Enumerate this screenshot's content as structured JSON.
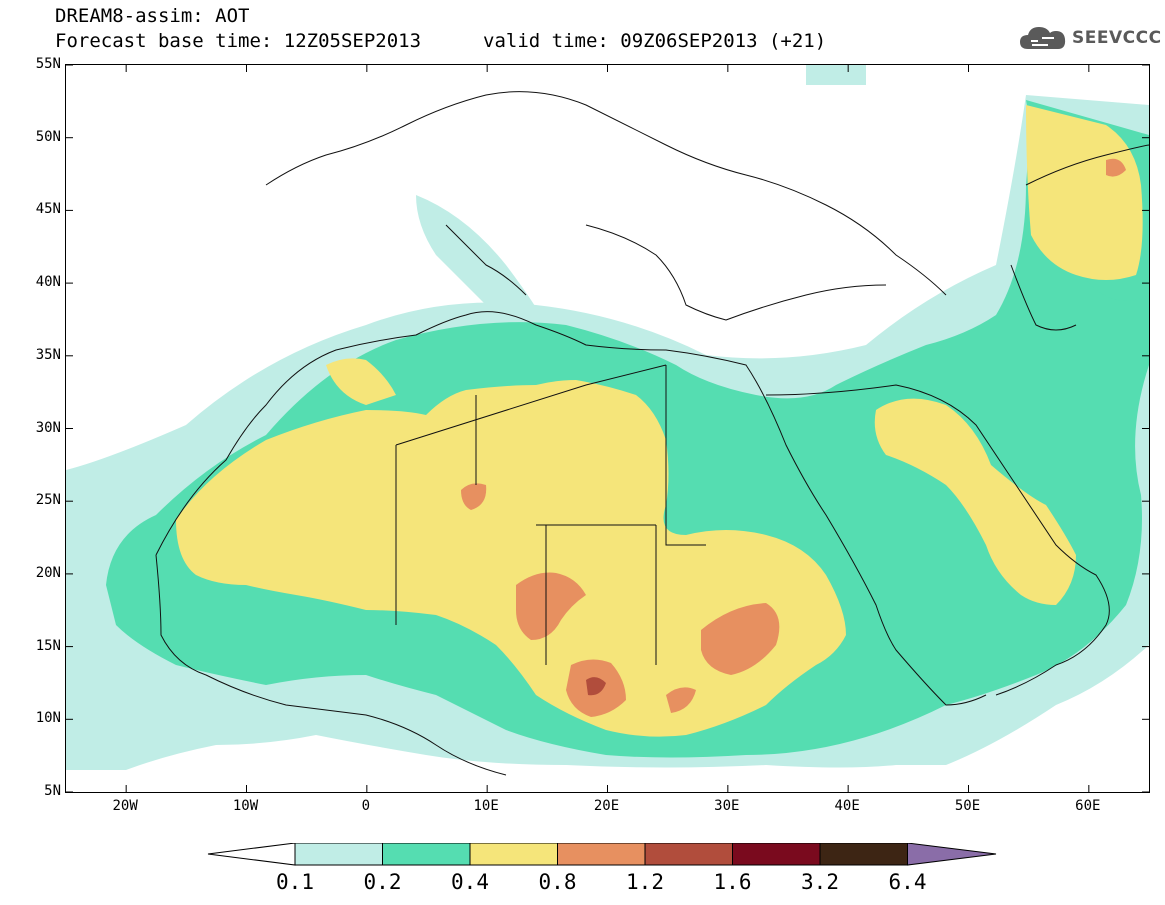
{
  "header": {
    "title": "DREAM8-assim: AOT",
    "base_time": "Forecast base time: 12Z05SEP2013",
    "valid_time": "valid time: 09Z06SEP2013 (+21)"
  },
  "logo": {
    "text": "SEEVCCC",
    "icon": "cloud-logo-icon"
  },
  "map": {
    "lon_range": [
      -25,
      65
    ],
    "lat_range": [
      5,
      55
    ],
    "lat_ticks": [
      {
        "v": 55,
        "label": "55N"
      },
      {
        "v": 50,
        "label": "50N"
      },
      {
        "v": 45,
        "label": "45N"
      },
      {
        "v": 40,
        "label": "40N"
      },
      {
        "v": 35,
        "label": "35N"
      },
      {
        "v": 30,
        "label": "30N"
      },
      {
        "v": 25,
        "label": "25N"
      },
      {
        "v": 20,
        "label": "20N"
      },
      {
        "v": 15,
        "label": "15N"
      },
      {
        "v": 10,
        "label": "10N"
      },
      {
        "v": 5,
        "label": "5N"
      }
    ],
    "lon_ticks": [
      {
        "v": -20,
        "label": "20W"
      },
      {
        "v": -10,
        "label": "10W"
      },
      {
        "v": 0,
        "label": "0"
      },
      {
        "v": 10,
        "label": "10E"
      },
      {
        "v": 20,
        "label": "20E"
      },
      {
        "v": 30,
        "label": "30E"
      },
      {
        "v": 40,
        "label": "40E"
      },
      {
        "v": 50,
        "label": "50E"
      },
      {
        "v": 60,
        "label": "60E"
      }
    ]
  },
  "colorbar": {
    "labels": [
      "0.1",
      "0.2",
      "0.4",
      "0.8",
      "1.2",
      "1.6",
      "3.2",
      "6.4"
    ],
    "colors": [
      "#ffffff",
      "#c0ede6",
      "#55ddb1",
      "#f5e57a",
      "#e79060",
      "#b14d3c",
      "#7a0a1e",
      "#3d2514",
      "#8a6da8"
    ]
  }
}
